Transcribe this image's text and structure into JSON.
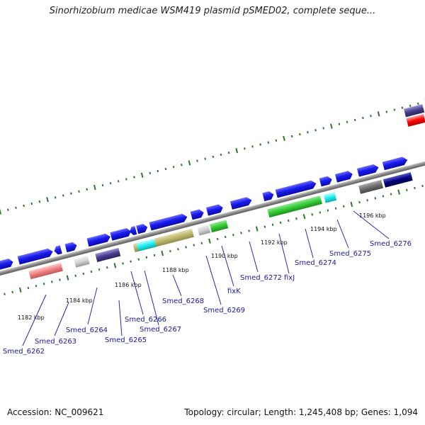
{
  "title": "Sinorhizobium medicae WSM419 plasmid pSMED02, complete seque...",
  "footer": {
    "accession": "Accession: NC_009621",
    "stats": "Topology: circular; Length: 1,245,408 bp; Genes: 1,094"
  },
  "colors": {
    "cds_blue": "#1a1aee",
    "backbone": "#8a8a8a",
    "tick_green": "#2a7a2a",
    "label_blue": "#1a1aa0"
  },
  "scale_labels": [
    "1182 kbp",
    "1184 kbp",
    "1186 kbp",
    "1188 kbp",
    "1190 kbp",
    "1192 kbp",
    "1194 kbp",
    "1196 kbp"
  ],
  "gene_labels": [
    "Smed_6262",
    "Smed_6263",
    "Smed_6264",
    "Smed_6265",
    "Smed_6266",
    "Smed_6267",
    "Smed_6268",
    "Smed_6269",
    "fixK",
    "Smed_6272",
    "fixJ",
    "Smed_6274",
    "Smed_6275",
    "Smed_6276"
  ]
}
